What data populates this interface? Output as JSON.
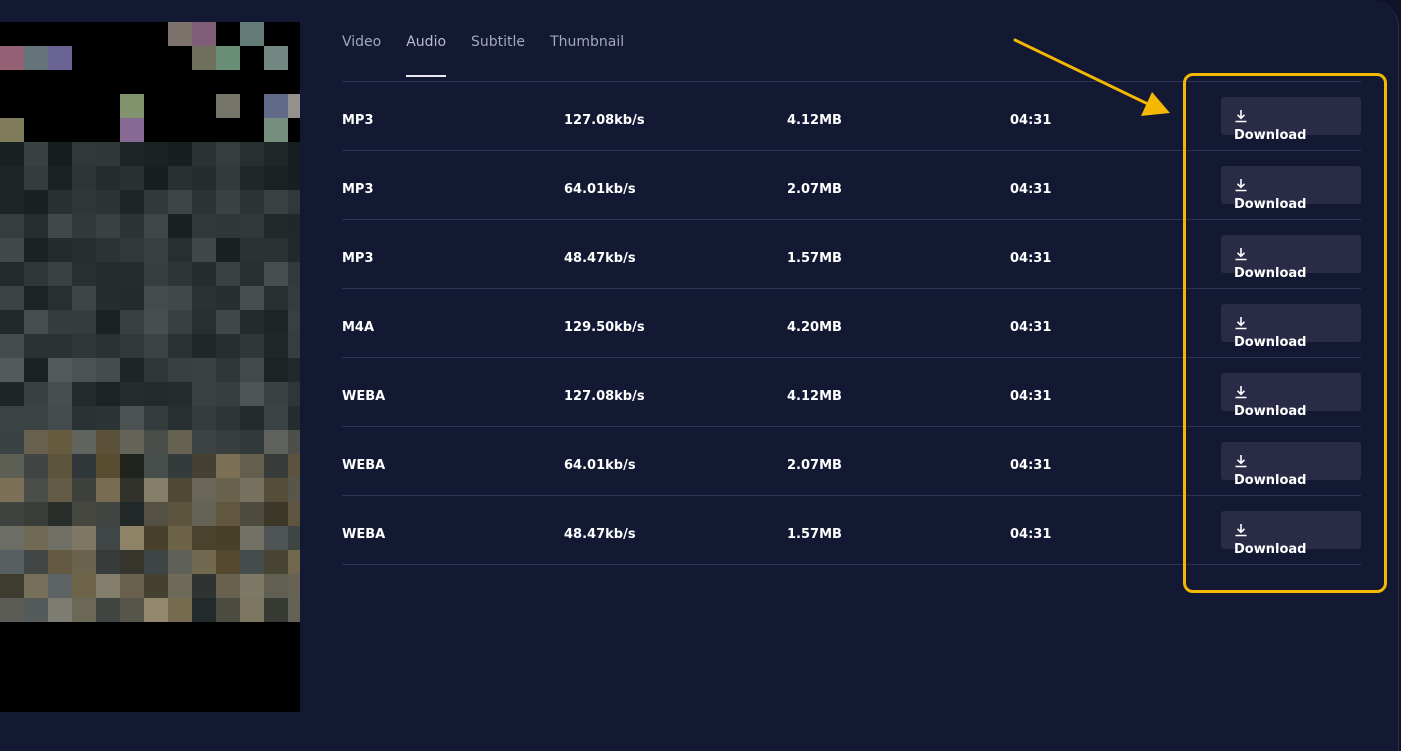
{
  "tabs": [
    {
      "label": "Video"
    },
    {
      "label": "Audio",
      "active": true
    },
    {
      "label": "Subtitle"
    },
    {
      "label": "Thumbnail"
    }
  ],
  "rows": [
    {
      "format": "MP3",
      "bitrate": "127.08kb/s",
      "size": "4.12MB",
      "duration": "04:31",
      "action": "Download"
    },
    {
      "format": "MP3",
      "bitrate": "64.01kb/s",
      "size": "2.07MB",
      "duration": "04:31",
      "action": "Download"
    },
    {
      "format": "MP3",
      "bitrate": "48.47kb/s",
      "size": "1.57MB",
      "duration": "04:31",
      "action": "Download"
    },
    {
      "format": "M4A",
      "bitrate": "129.50kb/s",
      "size": "4.20MB",
      "duration": "04:31",
      "action": "Download"
    },
    {
      "format": "WEBA",
      "bitrate": "127.08kb/s",
      "size": "4.12MB",
      "duration": "04:31",
      "action": "Download"
    },
    {
      "format": "WEBA",
      "bitrate": "64.01kb/s",
      "size": "2.07MB",
      "duration": "04:31",
      "action": "Download"
    },
    {
      "format": "WEBA",
      "bitrate": "48.47kb/s",
      "size": "1.57MB",
      "duration": "04:31",
      "action": "Download"
    }
  ],
  "colors": {
    "background": "#131833",
    "highlight": "#f5b800",
    "button": "#2a2c47"
  }
}
